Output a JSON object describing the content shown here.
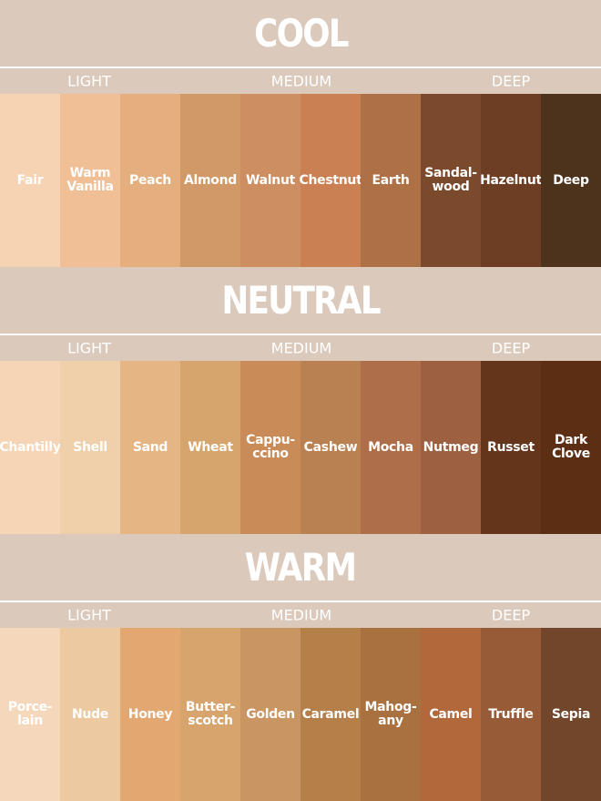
{
  "sections": [
    {
      "title": "COOL",
      "ranges": [
        "LIGHT",
        "MEDIUM",
        "DEEP"
      ],
      "swatches": [
        {
          "name": [
            "Fair"
          ],
          "color": "#f5d3b3"
        },
        {
          "name": [
            "Warm",
            "Vanilla"
          ],
          "color": "#f0bf96"
        },
        {
          "name": [
            "Peach"
          ],
          "color": "#e5ae7e"
        },
        {
          "name": [
            "Almond"
          ],
          "color": "#d19868"
        },
        {
          "name": [
            "Walnut"
          ],
          "color": "#cd8e62"
        },
        {
          "name": [
            "Chestnut"
          ],
          "color": "#cb8053"
        },
        {
          "name": [
            "Earth"
          ],
          "color": "#ae7145"
        },
        {
          "name": [
            "Sandal-",
            "wood"
          ],
          "color": "#7b4a2d"
        },
        {
          "name": [
            "Hazelnut"
          ],
          "color": "#6d3e24"
        },
        {
          "name": [
            "Deep"
          ],
          "color": "#4e331c"
        }
      ]
    },
    {
      "title": "NEUTRAL",
      "ranges": [
        "LIGHT",
        "MEDIUM",
        "DEEP"
      ],
      "swatches": [
        {
          "name": [
            "Chantilly"
          ],
          "color": "#f5d5b5"
        },
        {
          "name": [
            "Shell"
          ],
          "color": "#f0d0ab"
        },
        {
          "name": [
            "Sand"
          ],
          "color": "#e5b583"
        },
        {
          "name": [
            "Wheat"
          ],
          "color": "#d5a56d"
        },
        {
          "name": [
            "Cappu-",
            "ccino"
          ],
          "color": "#c98b57"
        },
        {
          "name": [
            "Cashew"
          ],
          "color": "#b98051"
        },
        {
          "name": [
            "Mocha"
          ],
          "color": "#ae6e4a"
        },
        {
          "name": [
            "Nutmeg"
          ],
          "color": "#9d6040"
        },
        {
          "name": [
            "Russet"
          ],
          "color": "#65351b"
        },
        {
          "name": [
            "Dark",
            "Clove"
          ],
          "color": "#5c2f15"
        }
      ]
    },
    {
      "title": "WARM",
      "ranges": [
        "LIGHT",
        "MEDIUM",
        "DEEP"
      ],
      "swatches": [
        {
          "name": [
            "Porce-",
            "lain"
          ],
          "color": "#f5d8bc"
        },
        {
          "name": [
            "Nude"
          ],
          "color": "#edc9a1"
        },
        {
          "name": [
            "Honey"
          ],
          "color": "#e3a872"
        },
        {
          "name": [
            "Butter-",
            "scotch"
          ],
          "color": "#d6a46c"
        },
        {
          "name": [
            "Golden"
          ],
          "color": "#c99562"
        },
        {
          "name": [
            "Caramel"
          ],
          "color": "#b57f4a"
        },
        {
          "name": [
            "Mahog-",
            "any"
          ],
          "color": "#a8713f"
        },
        {
          "name": [
            "Camel"
          ],
          "color": "#b1683b"
        },
        {
          "name": [
            "Truffle"
          ],
          "color": "#985b37"
        },
        {
          "name": [
            "Sepia"
          ],
          "color": "#72462b"
        }
      ]
    }
  ]
}
